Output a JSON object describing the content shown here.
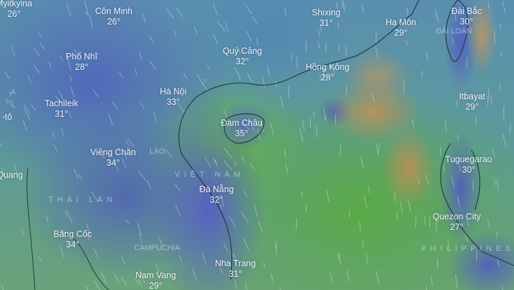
{
  "map": {
    "layer": "temperature",
    "cities": [
      {
        "name": "Myitkyina",
        "temp": "26°"
      },
      {
        "name": "Côn Minh",
        "temp": "26°"
      },
      {
        "name": "Shixing",
        "temp": "31°"
      },
      {
        "name": "Hạ Môn",
        "temp": "29°"
      },
      {
        "name": "Đài Bắc",
        "temp": "30°"
      },
      {
        "name": "Phổ Nhĩ",
        "temp": "28°"
      },
      {
        "name": "Quỳ Cảng",
        "temp": "32°"
      },
      {
        "name": "Hồng Kông",
        "temp": "28°"
      },
      {
        "name": "Hà Nội",
        "temp": "33°"
      },
      {
        "name": "Itbayat",
        "temp": "29°"
      },
      {
        "name": "Tachileik",
        "temp": "31°"
      },
      {
        "name": "Đam Châu",
        "temp": "35°"
      },
      {
        "name": "Viêng Chăn",
        "temp": "34°"
      },
      {
        "name": "Tuguegarao",
        "temp": "30°"
      },
      {
        "name": "Đà Nẵng",
        "temp": "32°"
      },
      {
        "name": "Băng Cốc",
        "temp": "34°"
      },
      {
        "name": "Quezon City",
        "temp": "27°"
      },
      {
        "name": "Nha Trang",
        "temp": "31°"
      },
      {
        "name": "Nam Vang",
        "temp": "29°"
      }
    ],
    "partial_labels": [
      "M A",
      "-tô",
      "Quang"
    ],
    "countries": [
      "ĐÀI LOAN",
      "LÀO",
      "VIỆT NAM",
      "THÁI LAN",
      "CAMPUCHIA",
      "PHILIPPINES"
    ],
    "colors": {
      "cool": "#5a6cc0",
      "mild": "#5d9a9a",
      "warm": "#6cb04a",
      "hot": "#c8905a"
    }
  }
}
